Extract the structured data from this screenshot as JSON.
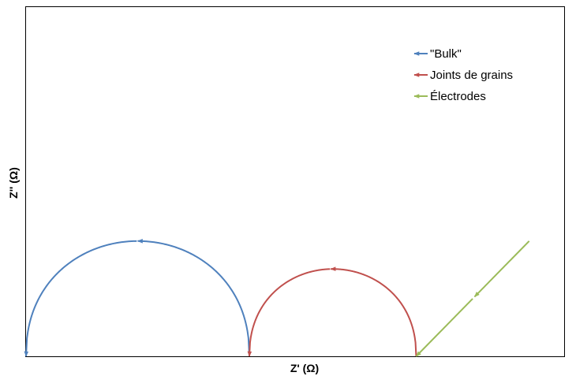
{
  "chart_data": {
    "type": "line",
    "title": "",
    "xlabel": "Z' (Ω)",
    "ylabel": "Z'' (Ω)",
    "xlim": [
      0,
      100
    ],
    "ylim": [
      0,
      100
    ],
    "grid": false,
    "ticks": false,
    "legend": {
      "placement": "top-right",
      "entries": [
        "\"Bulk\"",
        "Joints de grains",
        "Électrodes"
      ]
    },
    "series": [
      {
        "name": "\"Bulk\"",
        "color": "#4f81bd",
        "shape": "semicircle",
        "x_start": 0,
        "x_end": 41.5,
        "peak": 33,
        "arrow_x": [
          20.6,
          0
        ]
      },
      {
        "name": "Joints de grains",
        "color": "#c0504d",
        "shape": "semicircle",
        "x_start": 41.5,
        "x_end": 72.5,
        "peak": 25,
        "arrow_x": [
          56.6,
          41.5
        ]
      },
      {
        "name": "Électrodes",
        "color": "#9bbb59",
        "shape": "line",
        "x": [
          93.5,
          72.5
        ],
        "y": [
          33,
          0
        ],
        "arrow_x": [
          83.2,
          72.5
        ]
      }
    ]
  }
}
